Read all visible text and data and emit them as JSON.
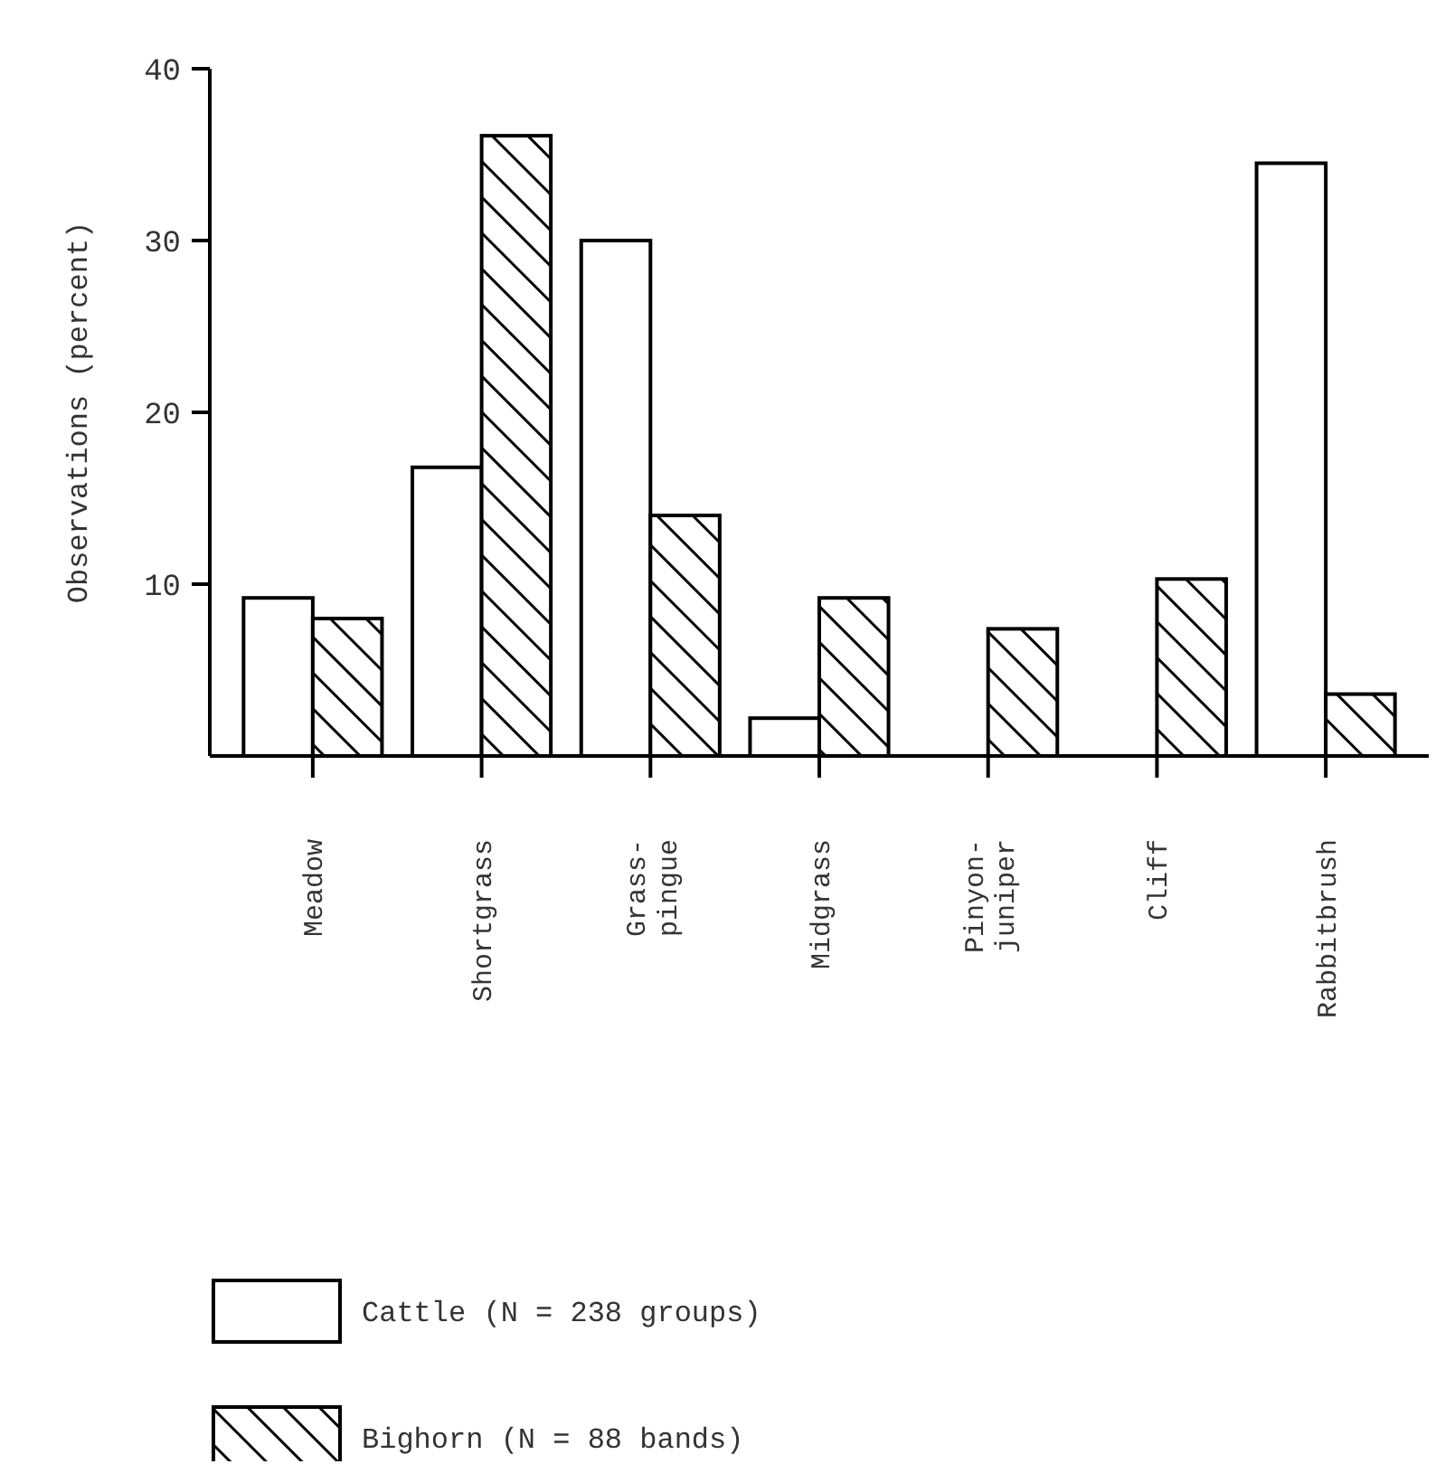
{
  "chart_data": {
    "type": "bar",
    "ylabel": "Observations (percent)",
    "categories": [
      "Meadow",
      "Shortgrass",
      "Grass-pingue",
      "Midgrass",
      "Pinyon-juniper",
      "Cliff",
      "Rabbitbrush"
    ],
    "series": [
      {
        "name": "Cattle (N = 238 groups)",
        "color": "#ffffff",
        "values": [
          9.2,
          16.8,
          30.0,
          2.2,
          0,
          0,
          34.5
        ]
      },
      {
        "name": "Bighorn (N = 88 bands)",
        "color": "#000000",
        "values": [
          8.0,
          36.1,
          14.0,
          9.2,
          7.4,
          10.3,
          3.6
        ]
      }
    ],
    "ylim": [
      0,
      40
    ],
    "yticks": [
      10,
      20,
      30,
      40
    ],
    "grid": false,
    "legend": "bottom left"
  }
}
